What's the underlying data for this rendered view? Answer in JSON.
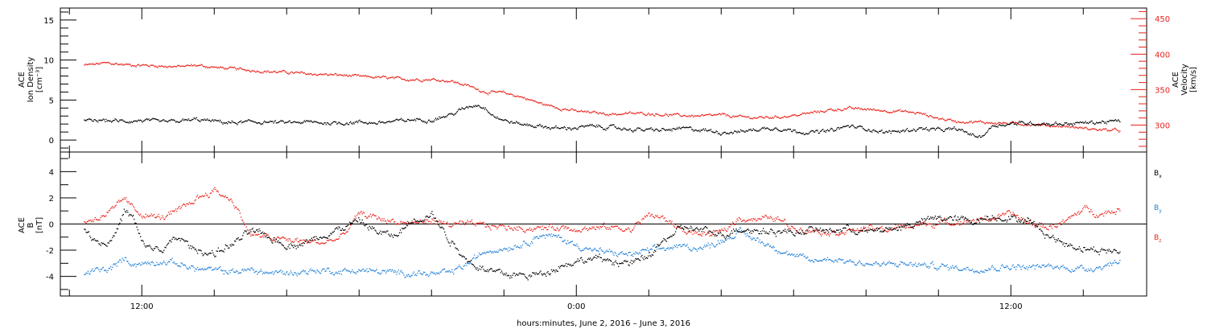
{
  "chart_data": [
    {
      "id": "plasma",
      "type": "scatter",
      "ylabel_left": [
        "ACE",
        "Ion Density",
        "[cm⁻³]"
      ],
      "ylabel_right": [
        "ACE",
        "Velocity",
        "[km/s]"
      ],
      "ylim_left": [
        -1.5,
        16.5
      ],
      "ylim_right": [
        262,
        465
      ],
      "left_ticks": [
        "0",
        "5",
        "10",
        "15"
      ],
      "left_tick_values": [
        0,
        5,
        10,
        15
      ],
      "right_ticks": [
        "300",
        "350",
        "400",
        "450"
      ],
      "right_tick_values": [
        300,
        350,
        400,
        450
      ],
      "left_color": "#000000",
      "right_color": "#e8231c",
      "series": [
        {
          "axis": "left",
          "color": "#000000",
          "x": [
            -3.2,
            -2,
            -1,
            0,
            1,
            2,
            3,
            4,
            5,
            6,
            7,
            8,
            9,
            10,
            11,
            12,
            13,
            14,
            15,
            16,
            17,
            18,
            18.5,
            19,
            19.5,
            20,
            21,
            22,
            23,
            24,
            25,
            26,
            27,
            28,
            29,
            30,
            31,
            32,
            32.5,
            33,
            34,
            35,
            36,
            37,
            38,
            39,
            40,
            41,
            42,
            43,
            44,
            45,
            46,
            46.3,
            47,
            48,
            49,
            50,
            51,
            52,
            53,
            54
          ],
          "y": [
            2.4,
            2.5,
            2.4,
            2.5,
            2.3,
            2.4,
            2.6,
            2.4,
            2.2,
            2.3,
            2.3,
            2.2,
            2.3,
            2.2,
            2.2,
            2.3,
            2.2,
            2.4,
            2.6,
            2.6,
            3.2,
            4.2,
            4.5,
            4.0,
            3.0,
            2.5,
            2.0,
            1.8,
            1.5,
            1.6,
            1.8,
            1.6,
            1.4,
            1.3,
            1.3,
            1.5,
            1.3,
            1.0,
            1.1,
            1.1,
            1.4,
            1.6,
            1.2,
            1.0,
            1.2,
            1.8,
            1.5,
            1.0,
            1.2,
            1.5,
            1.3,
            1.4,
            0.6,
            0.4,
            1.9,
            2.1,
            2.2,
            2.1,
            2.1,
            2.2,
            2.3,
            2.4
          ],
          "spread": 0.35
        },
        {
          "axis": "right",
          "color": "#e8231c",
          "x": [
            -3.2,
            -2,
            -1,
            0,
            1,
            2,
            3,
            4,
            5,
            6,
            7,
            8,
            9,
            10,
            11,
            12,
            13,
            14,
            15,
            16,
            17,
            18,
            19,
            20,
            21,
            22,
            23,
            24,
            25,
            26,
            27,
            28,
            29,
            30,
            31,
            32,
            33,
            34,
            35,
            36,
            37,
            38,
            39,
            40,
            41,
            42,
            43,
            44,
            45,
            46,
            47,
            48,
            49,
            50,
            51,
            52,
            53,
            54
          ],
          "y": [
            385,
            388,
            386,
            385,
            384,
            383,
            385,
            382,
            380,
            378,
            376,
            375,
            373,
            372,
            371,
            369,
            368,
            366,
            365,
            365,
            363,
            356,
            347,
            346,
            340,
            331,
            325,
            320,
            318,
            316,
            317,
            317,
            315,
            314,
            313,
            315,
            312,
            311,
            312,
            314,
            318,
            322,
            324,
            323,
            321,
            320,
            317,
            310,
            306,
            305,
            304,
            303,
            302,
            300,
            299,
            296,
            294,
            293
          ],
          "spread": 3
        }
      ]
    },
    {
      "id": "magnetic",
      "type": "scatter",
      "ylabel_left": [
        "ACE",
        "B",
        "[nT]"
      ],
      "ylim": [
        -5.5,
        5.5
      ],
      "ticks": [
        "-4",
        "-2",
        "0",
        "2",
        "4"
      ],
      "tick_values": [
        -4,
        -2,
        0,
        2,
        4
      ],
      "zero_line": true,
      "legend": [
        {
          "name": "B",
          "sub": "x",
          "color": "#000000"
        },
        {
          "name": "B",
          "sub": "y",
          "color": "#1e7fd6"
        },
        {
          "name": "B",
          "sub": "z",
          "color": "#e8231c"
        }
      ],
      "series": [
        {
          "name": "Bx",
          "color": "#000000",
          "x": [
            -3.2,
            -2.5,
            -2,
            -1.5,
            -1,
            -0.5,
            0,
            1,
            2,
            3,
            4,
            5,
            6,
            7,
            8,
            9,
            10,
            11,
            12,
            13,
            14,
            15,
            16,
            17,
            18,
            19,
            20,
            21,
            22,
            23,
            24,
            25,
            26,
            27,
            28,
            29,
            30,
            31,
            32,
            33,
            34,
            35,
            36,
            37,
            38,
            39,
            40,
            41,
            42,
            43,
            44,
            45,
            46,
            47,
            48,
            49,
            50,
            51,
            52,
            53,
            54
          ],
          "y": [
            -0.5,
            -1.2,
            -1.5,
            -0.8,
            1.0,
            0.5,
            -1.5,
            -2.0,
            -1.0,
            -2.0,
            -2.2,
            -1.5,
            -0.5,
            -1.0,
            -1.6,
            -1.4,
            -0.8,
            -0.3,
            0.3,
            -0.6,
            -0.9,
            0.4,
            0.8,
            -1.2,
            -2.8,
            -3.5,
            -3.8,
            -3.9,
            -3.8,
            -3.2,
            -2.8,
            -2.6,
            -2.8,
            -3.0,
            -2.4,
            -1.0,
            -0.2,
            -0.5,
            -0.8,
            -0.3,
            -0.5,
            -0.5,
            -0.6,
            -0.4,
            -0.5,
            -0.3,
            -0.6,
            -0.4,
            -0.2,
            0.2,
            0.5,
            0.4,
            0.3,
            0.6,
            0.5,
            0.3,
            -0.8,
            -1.5,
            -1.8,
            -2.0,
            -2.1
          ],
          "spread": 0.4
        },
        {
          "name": "By",
          "color": "#1e7fd6",
          "x": [
            -3.2,
            -2.5,
            -2,
            -1.5,
            -1,
            -0.5,
            0,
            1,
            2,
            3,
            4,
            5,
            6,
            7,
            8,
            9,
            10,
            11,
            12,
            13,
            14,
            15,
            16,
            17,
            18,
            19,
            20,
            21,
            22,
            23,
            24,
            25,
            26,
            27,
            28,
            29,
            30,
            31,
            32,
            33,
            34,
            35,
            36,
            37,
            38,
            39,
            40,
            41,
            42,
            43,
            44,
            45,
            46,
            47,
            48,
            49,
            50,
            51,
            52,
            53,
            54
          ],
          "y": [
            -3.8,
            -3.5,
            -3.5,
            -3.2,
            -2.6,
            -3.0,
            -3.0,
            -2.8,
            -3.0,
            -3.4,
            -3.5,
            -3.6,
            -3.5,
            -3.7,
            -3.7,
            -3.6,
            -3.5,
            -3.6,
            -3.5,
            -3.6,
            -3.7,
            -3.7,
            -3.8,
            -3.7,
            -3.0,
            -2.0,
            -1.8,
            -1.5,
            -0.8,
            -1.0,
            -1.6,
            -2.0,
            -2.2,
            -2.3,
            -2.0,
            -1.8,
            -1.7,
            -1.8,
            -1.2,
            -0.6,
            -1.2,
            -1.8,
            -2.4,
            -2.8,
            -2.6,
            -2.8,
            -3.0,
            -3.1,
            -3.0,
            -3.1,
            -3.2,
            -3.3,
            -3.4,
            -3.3,
            -3.2,
            -3.3,
            -3.2,
            -3.3,
            -3.4,
            -3.2,
            -2.8
          ],
          "spread": 0.35
        },
        {
          "name": "Bz",
          "color": "#e8231c",
          "x": [
            -3.2,
            -2.5,
            -2,
            -1.5,
            -1,
            -0.5,
            0,
            1,
            2,
            3,
            4,
            5,
            6,
            7,
            8,
            9,
            10,
            11,
            12,
            13,
            14,
            15,
            16,
            17,
            18,
            19,
            20,
            21,
            22,
            23,
            24,
            25,
            26,
            27,
            28,
            29,
            30,
            31,
            32,
            33,
            34,
            35,
            36,
            37,
            38,
            39,
            40,
            41,
            42,
            43,
            44,
            45,
            46,
            47,
            48,
            49,
            50,
            51,
            52,
            53,
            54
          ],
          "y": [
            0.2,
            0.5,
            0.8,
            1.2,
            2.0,
            1.2,
            0.8,
            0.5,
            1.0,
            2.0,
            2.6,
            1.8,
            -0.8,
            -1.0,
            -1.2,
            -1.3,
            -1.4,
            -1.0,
            0.8,
            0.5,
            0.2,
            0.1,
            0.3,
            0.0,
            0.0,
            -0.1,
            -0.2,
            -0.3,
            -0.3,
            -0.2,
            -0.3,
            -0.3,
            -0.2,
            -0.4,
            0.8,
            0.3,
            -0.5,
            -0.8,
            -0.6,
            0.5,
            0.4,
            0.5,
            -0.3,
            -0.4,
            -0.6,
            -0.5,
            -0.3,
            -0.4,
            -0.2,
            0.0,
            0.1,
            0.2,
            0.3,
            0.5,
            0.8,
            0.1,
            -0.2,
            0.2,
            1.2,
            0.8,
            1.2
          ],
          "spread": 0.35
        }
      ]
    }
  ],
  "x_axis": {
    "range_hours": [
      -4.5,
      55.5
    ],
    "tick_labels": [
      "12:00",
      "0:00",
      "12:00"
    ],
    "tick_values": [
      0,
      24,
      48
    ],
    "minor_step_hours": 4,
    "xlabel": "hours:minutes, June  2, 2016 – June  3, 2016"
  }
}
